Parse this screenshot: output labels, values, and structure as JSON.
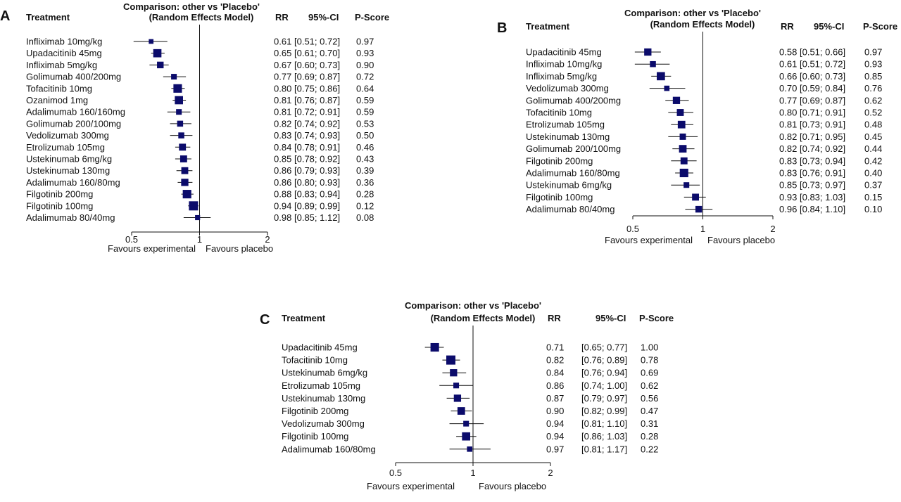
{
  "figure": {
    "header_treatment": "Treatment",
    "header_title_line1": "Comparison: other vs 'Placebo'",
    "header_title_line2": "(Random Effects Model)",
    "header_rr": "RR",
    "header_ci": "95%-CI",
    "header_pscore": "P-Score",
    "favours_left": "Favours experimental",
    "favours_right": "Favours placebo"
  },
  "colors": {
    "marker": "#0b0b6b",
    "line": "#111111"
  },
  "chart_data": [
    {
      "type": "forest",
      "panel": "A",
      "x_scale": "log",
      "xlim": [
        0.5,
        2
      ],
      "x_ticks": [
        "0.5",
        "1",
        "2"
      ],
      "reference_line": 1,
      "rows": [
        {
          "treatment": "Infliximab 10mg/kg",
          "rr": 0.61,
          "lo": 0.51,
          "hi": 0.72,
          "rr_text": "0.61",
          "ci_text": "[0.51; 0.72]",
          "pscore": "0.97",
          "weight": 0.3
        },
        {
          "treatment": "Upadacitinib 45mg",
          "rr": 0.65,
          "lo": 0.61,
          "hi": 0.7,
          "rr_text": "0.65",
          "ci_text": "[0.61; 0.70]",
          "pscore": "0.93",
          "weight": 0.85
        },
        {
          "treatment": "Infliximab 5mg/kg",
          "rr": 0.67,
          "lo": 0.6,
          "hi": 0.73,
          "rr_text": "0.67",
          "ci_text": "[0.60; 0.73]",
          "pscore": "0.90",
          "weight": 0.6
        },
        {
          "treatment": "Golimumab 400/200mg",
          "rr": 0.77,
          "lo": 0.69,
          "hi": 0.87,
          "rr_text": "0.77",
          "ci_text": "[0.69; 0.87]",
          "pscore": "0.72",
          "weight": 0.45
        },
        {
          "treatment": "Tofacitinib 10mg",
          "rr": 0.8,
          "lo": 0.75,
          "hi": 0.86,
          "rr_text": "0.80",
          "ci_text": "[0.75; 0.86]",
          "pscore": "0.64",
          "weight": 0.9
        },
        {
          "treatment": "Ozanimod 1mg",
          "rr": 0.81,
          "lo": 0.76,
          "hi": 0.87,
          "rr_text": "0.81",
          "ci_text": "[0.76; 0.87]",
          "pscore": "0.59",
          "weight": 0.85
        },
        {
          "treatment": "Adalimumab 160/160mg",
          "rr": 0.81,
          "lo": 0.72,
          "hi": 0.91,
          "rr_text": "0.81",
          "ci_text": "[0.72; 0.91]",
          "pscore": "0.59",
          "weight": 0.45
        },
        {
          "treatment": "Golimumab 200/100mg",
          "rr": 0.82,
          "lo": 0.74,
          "hi": 0.92,
          "rr_text": "0.82",
          "ci_text": "[0.74; 0.92]",
          "pscore": "0.53",
          "weight": 0.5
        },
        {
          "treatment": "Vedolizumab 300mg",
          "rr": 0.83,
          "lo": 0.74,
          "hi": 0.93,
          "rr_text": "0.83",
          "ci_text": "[0.74; 0.93]",
          "pscore": "0.50",
          "weight": 0.5
        },
        {
          "treatment": "Etrolizumab 105mg",
          "rr": 0.84,
          "lo": 0.78,
          "hi": 0.91,
          "rr_text": "0.84",
          "ci_text": "[0.78; 0.91]",
          "pscore": "0.46",
          "weight": 0.65
        },
        {
          "treatment": "Ustekinumab 6mg/kg",
          "rr": 0.85,
          "lo": 0.78,
          "hi": 0.92,
          "rr_text": "0.85",
          "ci_text": "[0.78; 0.92]",
          "pscore": "0.43",
          "weight": 0.65
        },
        {
          "treatment": "Ustekinumab 130mg",
          "rr": 0.86,
          "lo": 0.79,
          "hi": 0.93,
          "rr_text": "0.86",
          "ci_text": "[0.79; 0.93]",
          "pscore": "0.39",
          "weight": 0.65
        },
        {
          "treatment": "Adalimumab 160/80mg",
          "rr": 0.86,
          "lo": 0.8,
          "hi": 0.93,
          "rr_text": "0.86",
          "ci_text": "[0.80; 0.93]",
          "pscore": "0.36",
          "weight": 0.7
        },
        {
          "treatment": "Filgotinib 200mg",
          "rr": 0.88,
          "lo": 0.83,
          "hi": 0.94,
          "rr_text": "0.88",
          "ci_text": "[0.83; 0.94]",
          "pscore": "0.28",
          "weight": 0.9
        },
        {
          "treatment": "Filgotinib 100mg",
          "rr": 0.94,
          "lo": 0.89,
          "hi": 0.99,
          "rr_text": "0.94",
          "ci_text": "[0.89; 0.99]",
          "pscore": "0.12",
          "weight": 1.0
        },
        {
          "treatment": "Adalimumab 80/40mg",
          "rr": 0.98,
          "lo": 0.85,
          "hi": 1.12,
          "rr_text": "0.98",
          "ci_text": "[0.85; 1.12]",
          "pscore": "0.08",
          "weight": 0.35
        }
      ]
    },
    {
      "type": "forest",
      "panel": "B",
      "x_scale": "log",
      "xlim": [
        0.5,
        2
      ],
      "x_ticks": [
        "0.5",
        "1",
        "2"
      ],
      "reference_line": 1,
      "rows": [
        {
          "treatment": "Upadacitinib 45mg",
          "rr": 0.58,
          "lo": 0.51,
          "hi": 0.66,
          "rr_text": "0.58",
          "ci_text": "[0.51; 0.66]",
          "pscore": "0.97",
          "weight": 0.7
        },
        {
          "treatment": "Infliximab 10mg/kg",
          "rr": 0.61,
          "lo": 0.51,
          "hi": 0.72,
          "rr_text": "0.61",
          "ci_text": "[0.51; 0.72]",
          "pscore": "0.93",
          "weight": 0.5
        },
        {
          "treatment": "Infliximab 5mg/kg",
          "rr": 0.66,
          "lo": 0.6,
          "hi": 0.73,
          "rr_text": "0.66",
          "ci_text": "[0.60; 0.73]",
          "pscore": "0.85",
          "weight": 0.85
        },
        {
          "treatment": "Vedolizumab 300mg",
          "rr": 0.7,
          "lo": 0.59,
          "hi": 0.84,
          "rr_text": "0.70",
          "ci_text": "[0.59; 0.84]",
          "pscore": "0.76",
          "weight": 0.4
        },
        {
          "treatment": "Golimumab 400/200mg",
          "rr": 0.77,
          "lo": 0.69,
          "hi": 0.87,
          "rr_text": "0.77",
          "ci_text": "[0.69; 0.87]",
          "pscore": "0.62",
          "weight": 0.7
        },
        {
          "treatment": "Tofacitinib 10mg",
          "rr": 0.8,
          "lo": 0.71,
          "hi": 0.91,
          "rr_text": "0.80",
          "ci_text": "[0.71; 0.91]",
          "pscore": "0.52",
          "weight": 0.65
        },
        {
          "treatment": "Etrolizumab 105mg",
          "rr": 0.81,
          "lo": 0.73,
          "hi": 0.91,
          "rr_text": "0.81",
          "ci_text": "[0.73; 0.91]",
          "pscore": "0.48",
          "weight": 0.75
        },
        {
          "treatment": "Ustekinumab 130mg",
          "rr": 0.82,
          "lo": 0.71,
          "hi": 0.95,
          "rr_text": "0.82",
          "ci_text": "[0.71; 0.95]",
          "pscore": "0.45",
          "weight": 0.55
        },
        {
          "treatment": "Golimumab 200/100mg",
          "rr": 0.82,
          "lo": 0.74,
          "hi": 0.92,
          "rr_text": "0.82",
          "ci_text": "[0.74; 0.92]",
          "pscore": "0.44",
          "weight": 0.75
        },
        {
          "treatment": "Filgotinib 200mg",
          "rr": 0.83,
          "lo": 0.73,
          "hi": 0.94,
          "rr_text": "0.83",
          "ci_text": "[0.73; 0.94]",
          "pscore": "0.42",
          "weight": 0.65
        },
        {
          "treatment": "Adalimumab 160/80mg",
          "rr": 0.83,
          "lo": 0.76,
          "hi": 0.91,
          "rr_text": "0.83",
          "ci_text": "[0.76; 0.91]",
          "pscore": "0.40",
          "weight": 0.9
        },
        {
          "treatment": "Ustekinumab 6mg/kg",
          "rr": 0.85,
          "lo": 0.73,
          "hi": 0.97,
          "rr_text": "0.85",
          "ci_text": "[0.73; 0.97]",
          "pscore": "0.37",
          "weight": 0.45
        },
        {
          "treatment": "Filgotinib 100mg",
          "rr": 0.93,
          "lo": 0.83,
          "hi": 1.03,
          "rr_text": "0.93",
          "ci_text": "[0.83; 1.03]",
          "pscore": "0.15",
          "weight": 0.65
        },
        {
          "treatment": "Adalimumab 80/40mg",
          "rr": 0.96,
          "lo": 0.84,
          "hi": 1.1,
          "rr_text": "0.96",
          "ci_text": "[0.84; 1.10]",
          "pscore": "0.10",
          "weight": 0.6
        }
      ]
    },
    {
      "type": "forest",
      "panel": "C",
      "x_scale": "log",
      "xlim": [
        0.5,
        2
      ],
      "x_ticks": [
        "0.5",
        "1",
        "2"
      ],
      "reference_line": 1,
      "rows": [
        {
          "treatment": "Upadacitinib 45mg",
          "rr": 0.71,
          "lo": 0.65,
          "hi": 0.77,
          "rr_text": "0.71",
          "ci_text": "[0.65; 0.77]",
          "pscore": "1.00",
          "weight": 0.9
        },
        {
          "treatment": "Tofacitinib 10mg",
          "rr": 0.82,
          "lo": 0.76,
          "hi": 0.89,
          "rr_text": "0.82",
          "ci_text": "[0.76; 0.89]",
          "pscore": "0.78",
          "weight": 1.0
        },
        {
          "treatment": "Ustekinumab 6mg/kg",
          "rr": 0.84,
          "lo": 0.76,
          "hi": 0.94,
          "rr_text": "0.84",
          "ci_text": "[0.76; 0.94]",
          "pscore": "0.69",
          "weight": 0.7
        },
        {
          "treatment": "Etrolizumab 105mg",
          "rr": 0.86,
          "lo": 0.74,
          "hi": 1.0,
          "rr_text": "0.86",
          "ci_text": "[0.74; 1.00]",
          "pscore": "0.62",
          "weight": 0.45
        },
        {
          "treatment": "Ustekinumab 130mg",
          "rr": 0.87,
          "lo": 0.79,
          "hi": 0.97,
          "rr_text": "0.87",
          "ci_text": "[0.79; 0.97]",
          "pscore": "0.56",
          "weight": 0.7
        },
        {
          "treatment": "Filgotinib 200mg",
          "rr": 0.9,
          "lo": 0.82,
          "hi": 0.99,
          "rr_text": "0.90",
          "ci_text": "[0.82; 0.99]",
          "pscore": "0.47",
          "weight": 0.75
        },
        {
          "treatment": "Vedolizumab 300mg",
          "rr": 0.94,
          "lo": 0.81,
          "hi": 1.1,
          "rr_text": "0.94",
          "ci_text": "[0.81; 1.10]",
          "pscore": "0.31",
          "weight": 0.45
        },
        {
          "treatment": "Filgotinib 100mg",
          "rr": 0.94,
          "lo": 0.86,
          "hi": 1.03,
          "rr_text": "0.94",
          "ci_text": "[0.86; 1.03]",
          "pscore": "0.28",
          "weight": 0.85
        },
        {
          "treatment": "Adalimumab 160/80mg",
          "rr": 0.97,
          "lo": 0.81,
          "hi": 1.17,
          "rr_text": "0.97",
          "ci_text": "[0.81; 1.17]",
          "pscore": "0.22",
          "weight": 0.4
        }
      ]
    }
  ]
}
